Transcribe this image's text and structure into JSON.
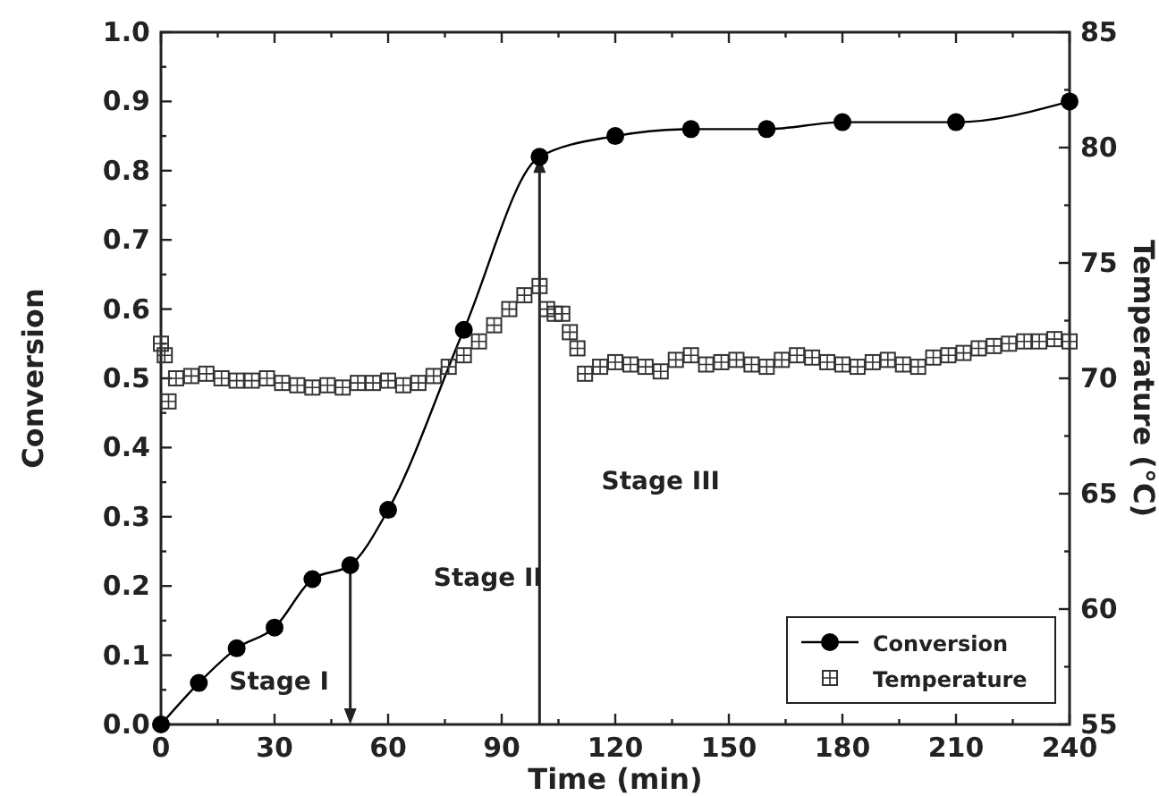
{
  "chart_data": {
    "type": "line",
    "xlabel": "Time (min)",
    "ylabel": "Conversion",
    "y2label": "Temperature (°C)",
    "xlim": [
      0,
      240
    ],
    "ylim": [
      0,
      1
    ],
    "y2lim": [
      55,
      85
    ],
    "xticks": [
      0,
      {
        "value": 15,
        "label": null
      },
      30,
      {
        "value": 45,
        "label": null
      },
      60,
      {
        "value": 75,
        "label": null
      },
      90,
      {
        "value": 105,
        "label": null
      },
      120,
      {
        "value": 135,
        "label": null
      },
      150,
      {
        "value": 165,
        "label": null
      },
      180,
      {
        "value": 195,
        "label": null
      },
      210,
      {
        "value": 225,
        "label": null
      },
      240
    ],
    "yticks": [
      {
        "value": 0,
        "label": "0.0"
      },
      {
        "value": 0.05,
        "label": null
      },
      {
        "value": 0.1,
        "label": "0.1"
      },
      {
        "value": 0.15,
        "label": null
      },
      {
        "value": 0.2,
        "label": "0.2"
      },
      {
        "value": 0.25,
        "label": null
      },
      {
        "value": 0.3,
        "label": "0.3"
      },
      {
        "value": 0.35,
        "label": null
      },
      {
        "value": 0.4,
        "label": "0.4"
      },
      {
        "value": 0.45,
        "label": null
      },
      {
        "value": 0.5,
        "label": "0.5"
      },
      {
        "value": 0.55,
        "label": null
      },
      {
        "value": 0.6,
        "label": "0.6"
      },
      {
        "value": 0.65,
        "label": null
      },
      {
        "value": 0.7,
        "label": "0.7"
      },
      {
        "value": 0.75,
        "label": null
      },
      {
        "value": 0.8,
        "label": "0.8"
      },
      {
        "value": 0.85,
        "label": null
      },
      {
        "value": 0.9,
        "label": "0.9"
      },
      {
        "value": 0.95,
        "label": null
      },
      {
        "value": 1,
        "label": "1.0"
      }
    ],
    "y2ticks": [
      55,
      {
        "value": 57.5,
        "label": null
      },
      60,
      {
        "value": 62.5,
        "label": null
      },
      65,
      {
        "value": 67.5,
        "label": null
      },
      70,
      {
        "value": 72.5,
        "label": null
      },
      75,
      {
        "value": 77.5,
        "label": null
      },
      80,
      {
        "value": 82.5,
        "label": null
      },
      85
    ],
    "grid": false,
    "legend": "bottom right",
    "annotations": [
      "Stage I",
      "Stage II",
      "Stage III"
    ],
    "ref_lines": [
      {
        "axis": "x",
        "value": 50
      },
      {
        "axis": "x",
        "value": 100
      }
    ],
    "series": [
      {
        "name": "Conversion",
        "color": "#000000",
        "marker": "circle",
        "line_style": "solid",
        "x": [
          0,
          10,
          20,
          30,
          40,
          50,
          60,
          80,
          100,
          120,
          140,
          160,
          180,
          210,
          240
        ],
        "values": [
          0,
          0.06,
          0.11,
          0.14,
          0.21,
          0.23,
          0.31,
          0.57,
          0.82,
          0.85,
          0.86,
          0.86,
          0.87,
          0.87,
          0.9
        ]
      },
      {
        "name": "Temperature",
        "type": "scatter",
        "axis": "y2",
        "color": "#333333",
        "marker": "square",
        "x": [
          0,
          1,
          2,
          4,
          8,
          12,
          16,
          20,
          24,
          28,
          32,
          36,
          40,
          44,
          48,
          52,
          56,
          60,
          64,
          68,
          72,
          76,
          80,
          84,
          88,
          92,
          96,
          100,
          102,
          104,
          106,
          108,
          110,
          112,
          116,
          120,
          124,
          128,
          132,
          136,
          140,
          144,
          148,
          152,
          156,
          160,
          164,
          168,
          172,
          176,
          180,
          184,
          188,
          192,
          196,
          200,
          204,
          208,
          212,
          216,
          220,
          224,
          228,
          232,
          236,
          240
        ],
        "values": [
          71.5,
          71.0,
          69.0,
          70.0,
          70.1,
          70.2,
          70.0,
          69.9,
          69.9,
          70.0,
          69.8,
          69.7,
          69.6,
          69.7,
          69.6,
          69.8,
          69.8,
          69.9,
          69.7,
          69.8,
          70.1,
          70.5,
          71.0,
          71.6,
          72.3,
          73.0,
          73.6,
          74.0,
          73.0,
          72.8,
          72.8,
          72.0,
          71.3,
          70.2,
          70.5,
          70.7,
          70.6,
          70.5,
          70.3,
          70.8,
          71.0,
          70.6,
          70.7,
          70.8,
          70.6,
          70.5,
          70.8,
          71.0,
          70.9,
          70.7,
          70.6,
          70.5,
          70.7,
          70.8,
          70.6,
          70.5,
          70.9,
          71.0,
          71.1,
          71.3,
          71.4,
          71.5,
          71.6,
          71.6,
          71.7,
          71.6
        ]
      }
    ]
  }
}
